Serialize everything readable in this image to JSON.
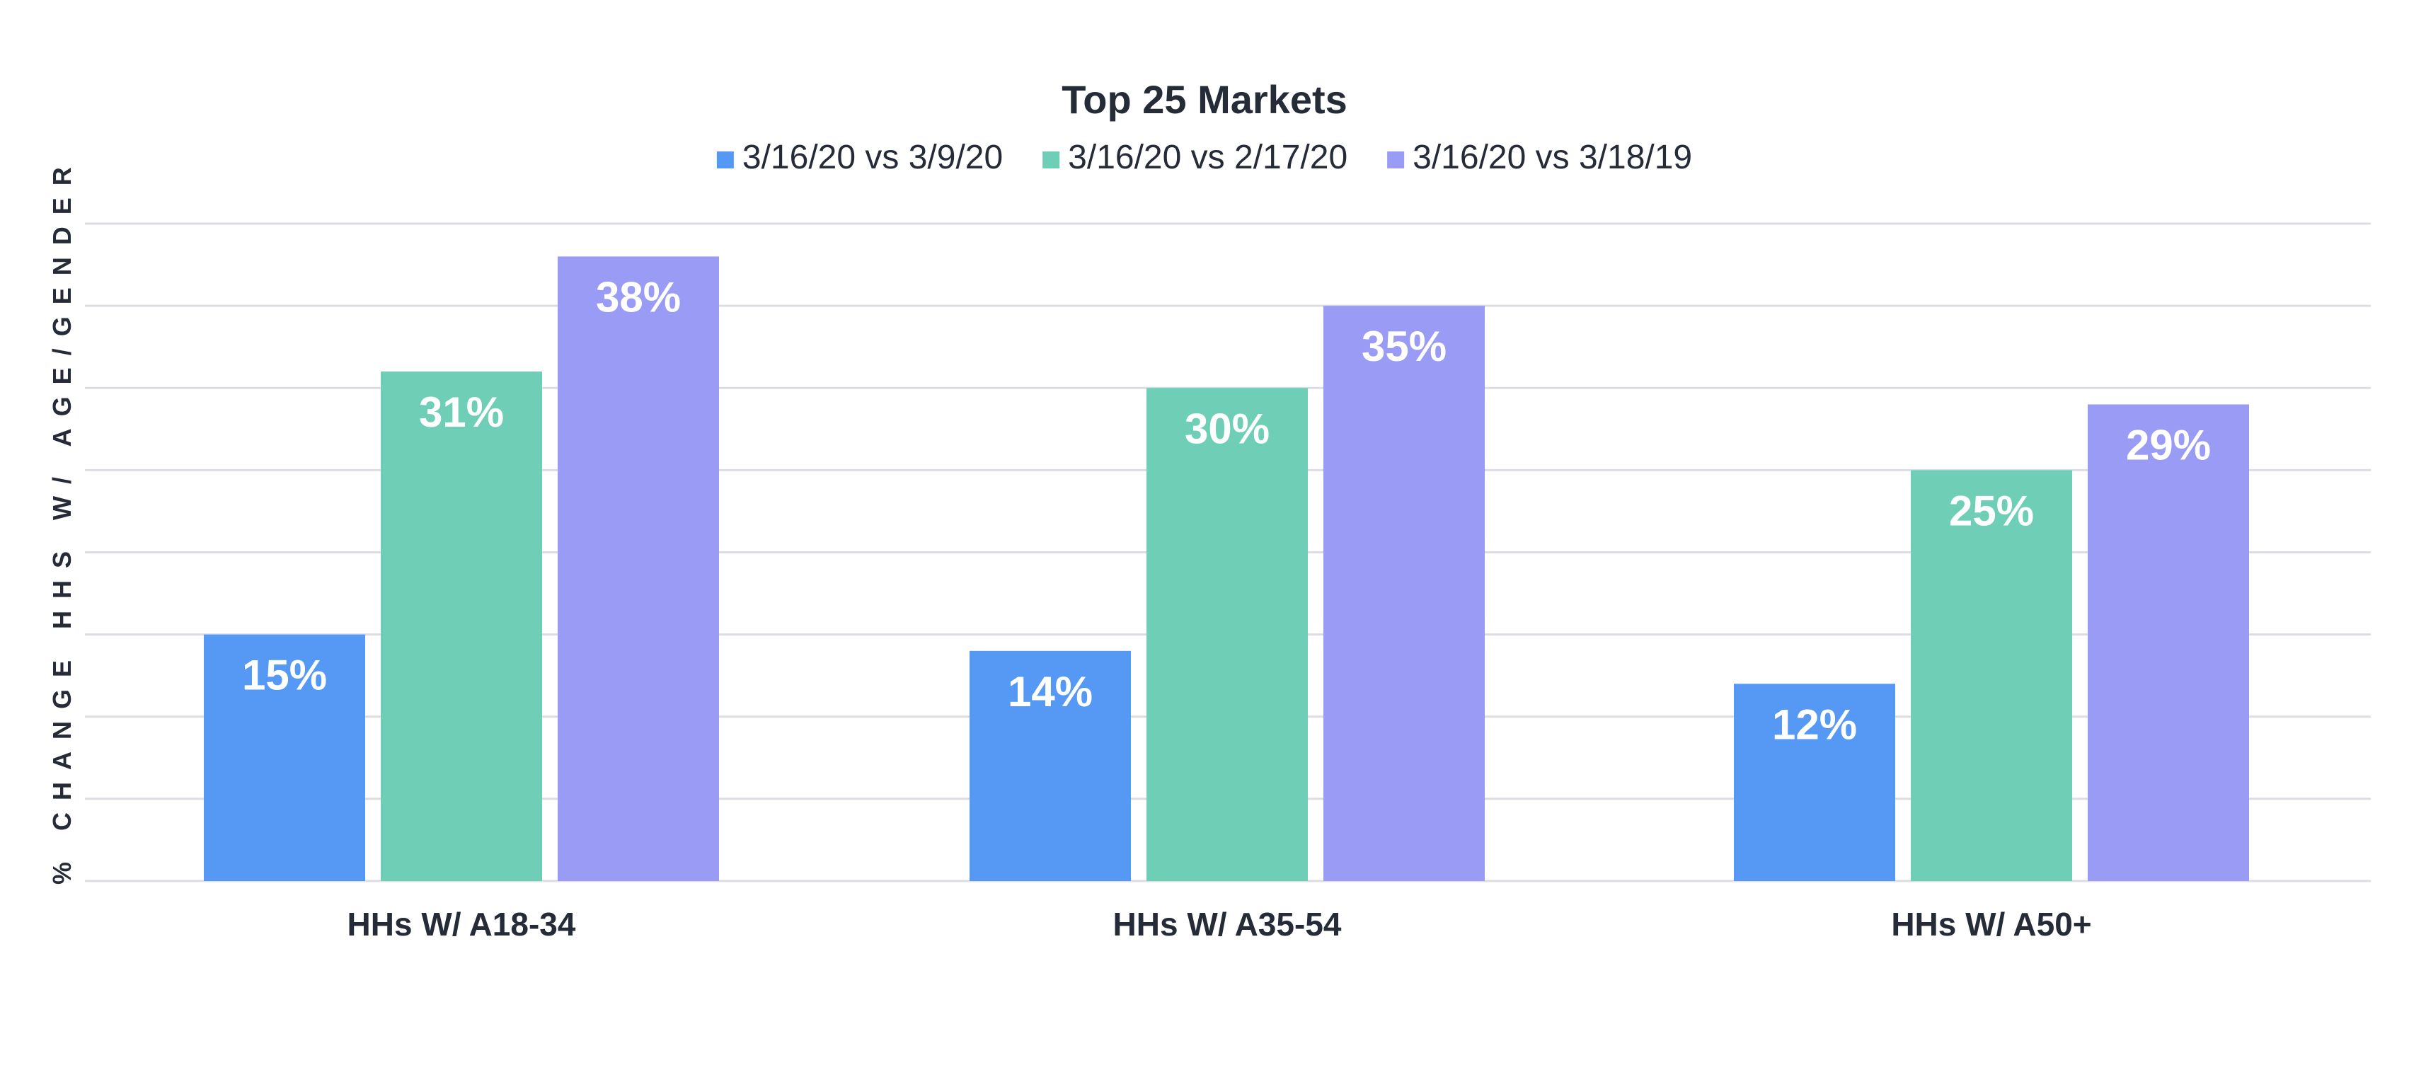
{
  "chart_data": {
    "type": "bar",
    "title": "Top 25 Markets",
    "xlabel": "",
    "ylabel": "% CHANGE HHS W/ AGE/GENDER",
    "categories": [
      "HHs W/ A18-34",
      "HHs W/ A35-54",
      "HHs W/ A50+"
    ],
    "series": [
      {
        "name": "3/16/20 vs 3/9/20",
        "color": "#5599f5",
        "values": [
          15,
          14,
          12
        ],
        "labels": [
          "15%",
          "14%",
          "12%"
        ]
      },
      {
        "name": "3/16/20 vs 2/17/20",
        "color": "#6fcfb6",
        "values": [
          31,
          30,
          25
        ],
        "labels": [
          "31%",
          "30%",
          "25%"
        ]
      },
      {
        "name": "3/16/20 vs 3/18/19",
        "color": "#9a9bf5",
        "values": [
          38,
          35,
          29
        ],
        "labels": [
          "38%",
          "35%",
          "29%"
        ]
      }
    ],
    "ylim": [
      0,
      40
    ],
    "y_gridlines": [
      0,
      5,
      10,
      15,
      20,
      25,
      30,
      35,
      40
    ],
    "y_tick_labels_shown": false,
    "grid": true,
    "legend_position": "top-center",
    "data_labels": "inside-top-of-bar"
  }
}
